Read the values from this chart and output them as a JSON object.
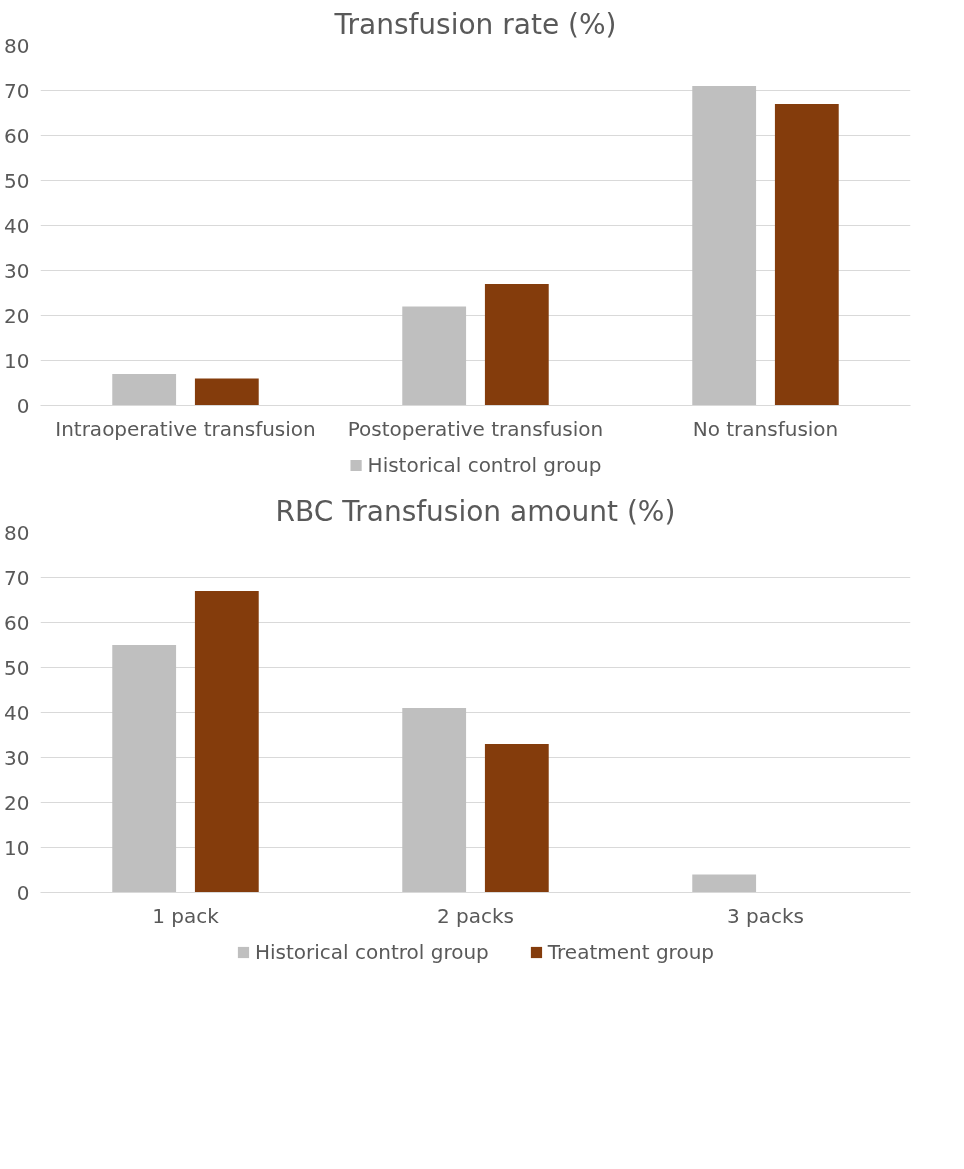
{
  "chart_data": [
    {
      "type": "bar",
      "title": "Transfusion rate (%)",
      "categories": [
        "Intraoperative transfusion",
        "Postoperative transfusion",
        "No transfusion"
      ],
      "series": [
        {
          "name": "Historical control group",
          "color": "#bfbfbf",
          "values": [
            7,
            22,
            71
          ]
        },
        {
          "color": "#843c0c",
          "values": [
            6,
            27,
            67
          ]
        }
      ],
      "ylim": [
        0,
        80
      ],
      "yticks": [
        0,
        10,
        20,
        30,
        40,
        50,
        60,
        70,
        80
      ],
      "grid": "y",
      "legend": "bottom"
    },
    {
      "type": "bar",
      "title": "RBC Transfusion amount (%)",
      "categories": [
        "1 pack",
        "2 packs",
        "3 packs"
      ],
      "series": [
        {
          "name": "Historical control group",
          "color": "#bfbfbf",
          "values": [
            55,
            41,
            4
          ]
        },
        {
          "name": "Treatment group",
          "color": "#843c0c",
          "values": [
            67,
            33,
            0
          ]
        }
      ],
      "ylim": [
        0,
        80
      ],
      "yticks": [
        0,
        10,
        20,
        30,
        40,
        50,
        60,
        70,
        80
      ],
      "grid": "y",
      "legend": "bottom"
    }
  ]
}
